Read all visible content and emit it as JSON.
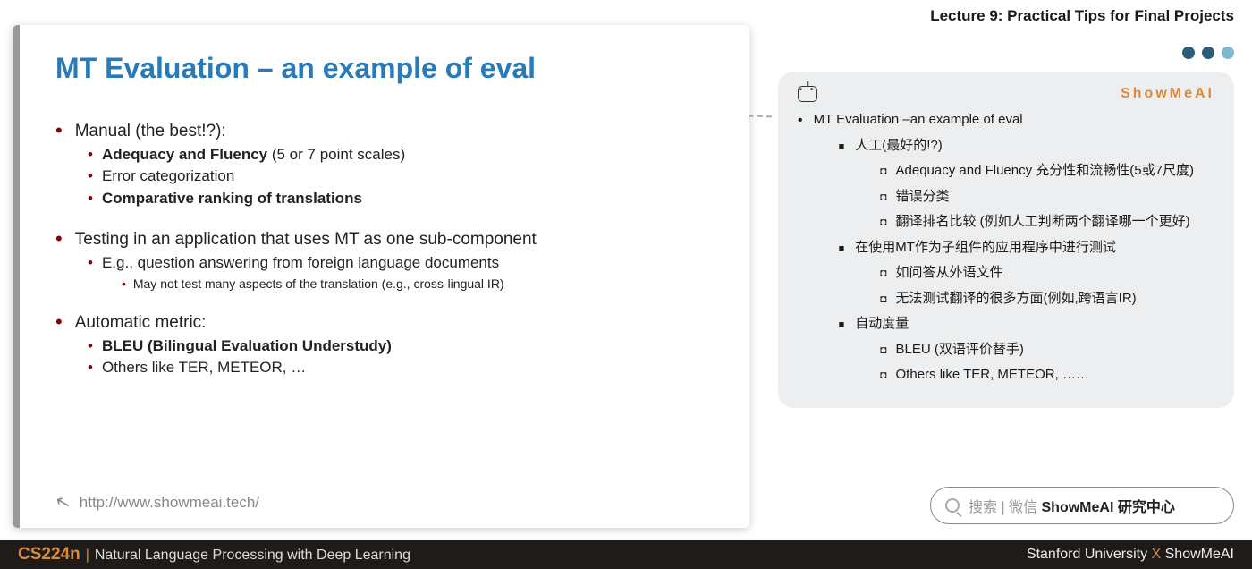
{
  "header": {
    "lecture_title": "Lecture 9: Practical Tips for Final Projects"
  },
  "dots": {
    "colors": [
      "#2a5d7a",
      "#2a5d7a",
      "#7fb8d1"
    ]
  },
  "slide": {
    "title": "MT Evaluation – an example of eval",
    "title_color": "#2a7ab8",
    "border_color": "#999999",
    "circle_color": "#d5e8ef",
    "sections": [
      {
        "label": "Manual (the best!?):",
        "children": [
          {
            "bold": "Adequacy and Fluency",
            "rest": " (5 or 7 point scales)"
          },
          {
            "text": "Error categorization"
          },
          {
            "bold": "Comparative ranking of translations"
          }
        ]
      },
      {
        "label": "Testing in an application that uses MT as one sub-component",
        "children": [
          {
            "text": "E.g., question answering from foreign language documents",
            "sub": [
              {
                "text": "May not test many aspects of the translation (e.g., cross-lingual IR)"
              }
            ]
          }
        ]
      },
      {
        "label": "Automatic metric:",
        "children": [
          {
            "bold": "BLEU (Bilingual Evaluation Understudy)"
          },
          {
            "text": "Others like TER, METEOR, …"
          }
        ]
      }
    ],
    "footer_url": "http://www.showmeai.tech/"
  },
  "notes": {
    "brand": "ShowMeAI",
    "brand_color": "#d98a3e",
    "bg_color": "#eceeef",
    "items": {
      "title": "MT Evaluation –an example of eval",
      "sections": [
        {
          "label": "人工(最好的!?)",
          "children": [
            "Adequacy and Fluency 充分性和流畅性(5或7尺度)",
            "错误分类",
            "翻译排名比较 (例如人工判断两个翻译哪一个更好)"
          ]
        },
        {
          "label": "在使用MT作为子组件的应用程序中进行测试",
          "children": [
            "如问答从外语文件",
            "无法测试翻译的很多方面(例如,跨语言IR)"
          ]
        },
        {
          "label": "自动度量",
          "children": [
            "BLEU (双语评价替手)",
            "Others like TER, METEOR, ……"
          ]
        }
      ]
    }
  },
  "search": {
    "prefix": "搜索 | 微信 ",
    "bold": "ShowMeAI 研究中心"
  },
  "footer": {
    "course_code": "CS224n",
    "course_name": "Natural Language Processing with Deep Learning",
    "right_pre": "Stanford University ",
    "right_x": "X",
    "right_post": " ShowMeAI",
    "bg_color": "#1e1b18",
    "accent_color": "#d98a3e"
  }
}
